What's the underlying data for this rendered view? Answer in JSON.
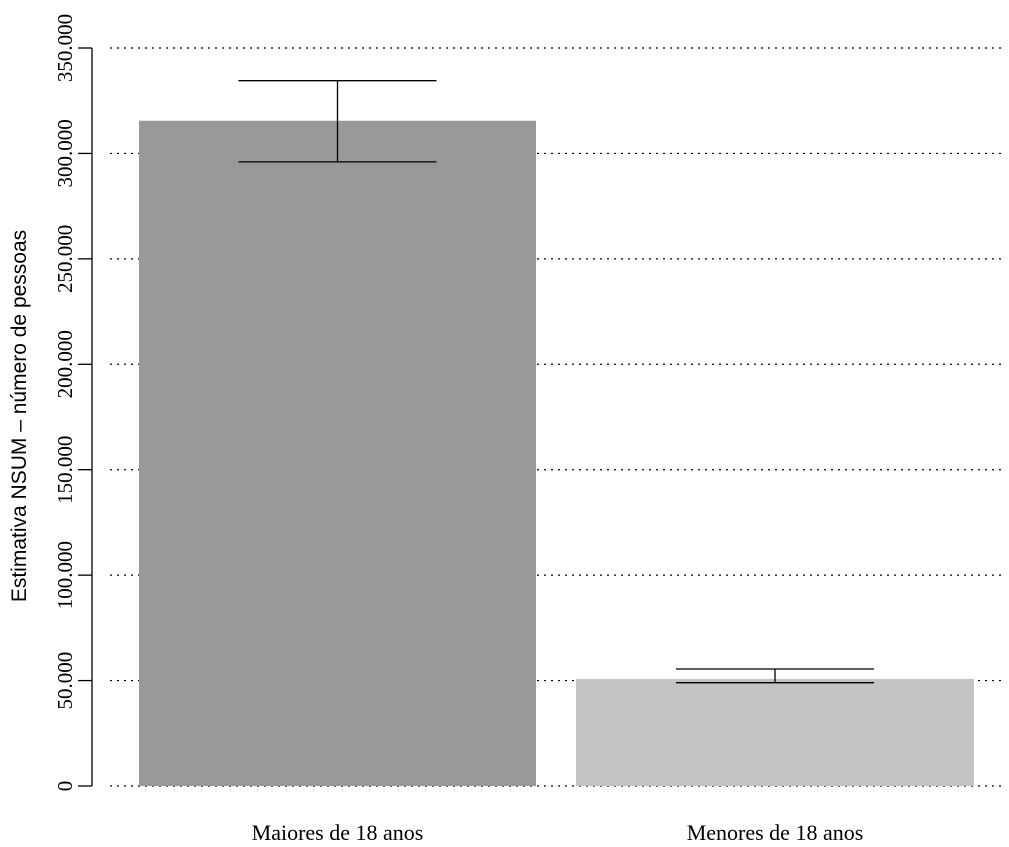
{
  "chart_data": {
    "type": "bar",
    "title": "",
    "xlabel": "",
    "ylabel": "Estimativa NSUM – número de pessoas",
    "ylim": [
      0,
      350000
    ],
    "yticks": [
      0,
      50000,
      100000,
      150000,
      200000,
      250000,
      300000,
      350000
    ],
    "ytick_labels": [
      "0",
      "50.000",
      "100.000",
      "150.000",
      "200.000",
      "250.000",
      "300.000",
      "350.000"
    ],
    "grid": "horizontal dotted",
    "legend": "none",
    "categories": [
      "Maiores de 18 anos",
      "Menores de 18 anos"
    ],
    "values": [
      315500,
      50800
    ],
    "error_low": [
      296000,
      49000
    ],
    "error_high": [
      334500,
      55500
    ],
    "colors": [
      "#999999",
      "#c4c4c4"
    ]
  }
}
